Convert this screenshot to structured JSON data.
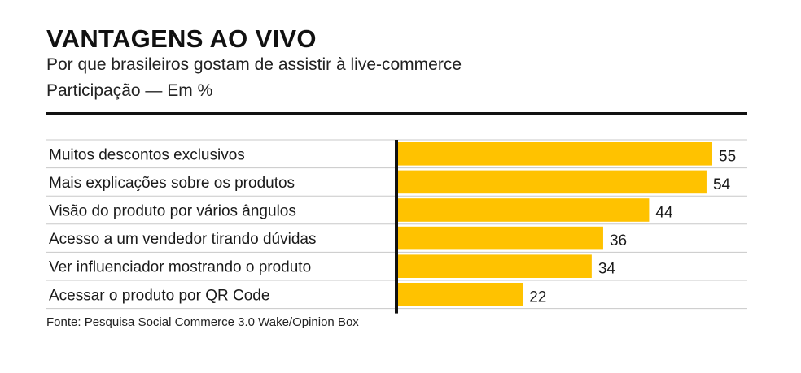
{
  "header": {
    "title": "VANTAGENS AO VIVO",
    "subtitle": "Por que brasileiros gostam de assistir à live-commerce",
    "unit": "Participação — Em %"
  },
  "source": "Fonte: Pesquisa Social Commerce 3.0 Wake/Opinion Box",
  "colors": {
    "bar": "#FFC200",
    "axis": "#111111",
    "row_divider": "#c8c8c8"
  },
  "chart_data": {
    "type": "bar",
    "orientation": "horizontal",
    "categories": [
      "Muitos descontos exclusivos",
      "Mais explicações sobre os produtos",
      "Visão do produto por vários ângulos",
      "Acesso a um vendedor tirando dúvidas",
      "Ver influenciador mostrando o produto",
      "Acessar o produto por QR Code"
    ],
    "values": [
      55,
      54,
      44,
      36,
      34,
      22
    ],
    "data_labels": [
      "55",
      "54",
      "44",
      "36",
      "34",
      "22"
    ],
    "xlim": [
      0,
      60
    ],
    "grid": false,
    "legend": "none"
  }
}
